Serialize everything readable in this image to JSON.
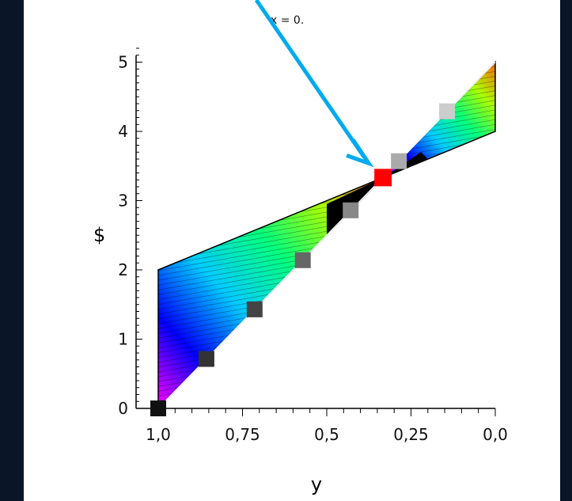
{
  "annotation": "x = 0.",
  "chart_data": {
    "type": "area",
    "xlabel": "y",
    "ylabel": "$",
    "xlim": [
      1.0,
      0.0
    ],
    "ylim": [
      0,
      5.2
    ],
    "x_reversed": true,
    "x_ticks": [
      1.0,
      0.75,
      0.5,
      0.25,
      0.0
    ],
    "x_tick_labels": [
      "1,0",
      "0,75",
      "0,5",
      "0,25",
      "0,0"
    ],
    "y_ticks": [
      0,
      1,
      2,
      3,
      4,
      5
    ],
    "y_tick_labels": [
      "0",
      "1",
      "2",
      "3",
      "4",
      "5"
    ],
    "region": {
      "upper_edge": [
        [
          1.0,
          2.0
        ],
        [
          0.333,
          3.333
        ],
        [
          0.0,
          4.0
        ]
      ],
      "lower_edge": [
        [
          1.0,
          0.0
        ],
        [
          0.333,
          3.333
        ],
        [
          0.0,
          5.0
        ]
      ]
    },
    "diagonal_line": {
      "x": [
        1.0,
        0.0
      ],
      "y": [
        0.0,
        5.0
      ]
    },
    "markers": [
      {
        "x": 1.0,
        "y": 0.0,
        "color": "#111111"
      },
      {
        "x": 0.857,
        "y": 0.714,
        "color": "#333333"
      },
      {
        "x": 0.714,
        "y": 1.43,
        "color": "#444444"
      },
      {
        "x": 0.571,
        "y": 2.14,
        "color": "#666666"
      },
      {
        "x": 0.429,
        "y": 2.86,
        "color": "#888888"
      },
      {
        "x": 0.333,
        "y": 3.333,
        "color": "#ff0000"
      },
      {
        "x": 0.286,
        "y": 3.57,
        "color": "#aaaaaa"
      },
      {
        "x": 0.143,
        "y": 4.29,
        "color": "#cccccc"
      }
    ],
    "grid": false,
    "colormap": "hsv"
  },
  "arrow_color": "#00aaee"
}
